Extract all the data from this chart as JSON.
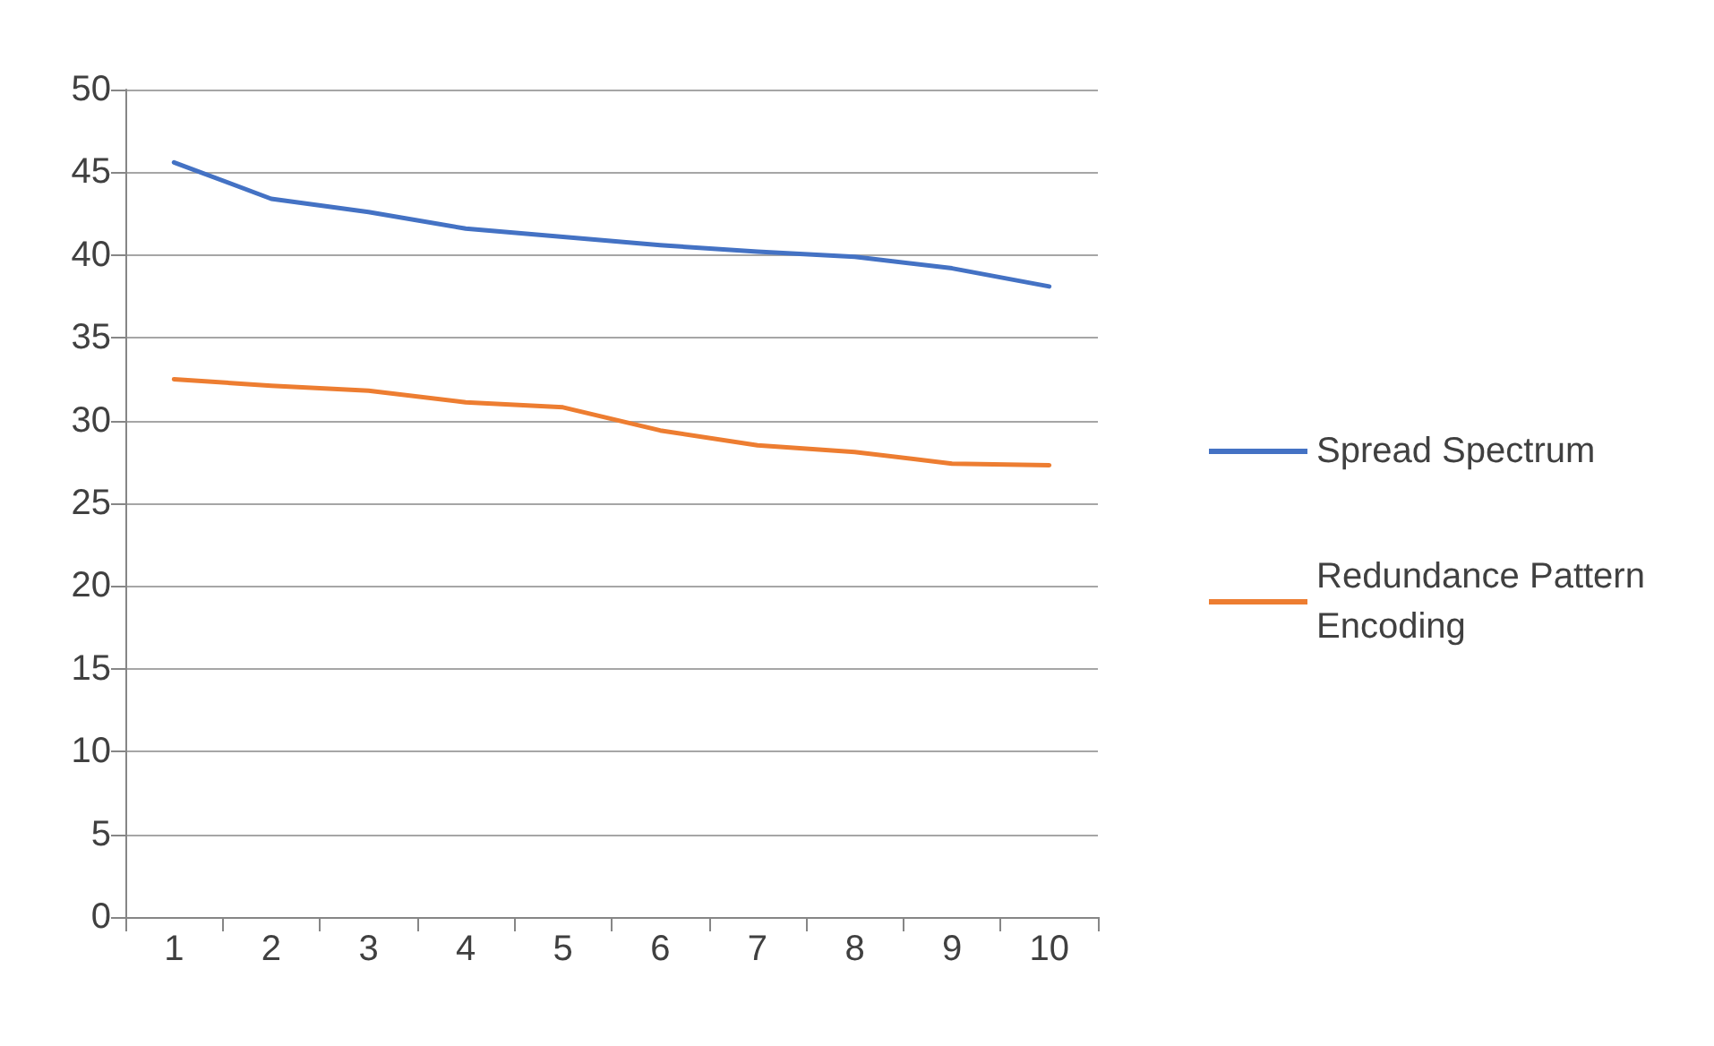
{
  "chart_data": {
    "type": "line",
    "categories": [
      "1",
      "2",
      "3",
      "4",
      "5",
      "6",
      "7",
      "8",
      "9",
      "10"
    ],
    "series": [
      {
        "name": "Spread Spectrum",
        "color": "#4472c4",
        "values": [
          45.6,
          43.4,
          42.6,
          41.6,
          41.1,
          40.6,
          40.2,
          39.9,
          39.2,
          38.1
        ]
      },
      {
        "name": "Redundance Pattern Encoding",
        "color": "#ed7d31",
        "values": [
          32.5,
          32.1,
          31.8,
          31.1,
          30.8,
          29.4,
          28.5,
          28.1,
          27.4,
          27.3
        ]
      }
    ],
    "ylim": [
      0,
      50
    ],
    "yticks": [
      0,
      5,
      10,
      15,
      20,
      25,
      30,
      35,
      40,
      45,
      50
    ],
    "grid": "y",
    "legend": "right",
    "marker": "none",
    "line_style": "solid"
  }
}
